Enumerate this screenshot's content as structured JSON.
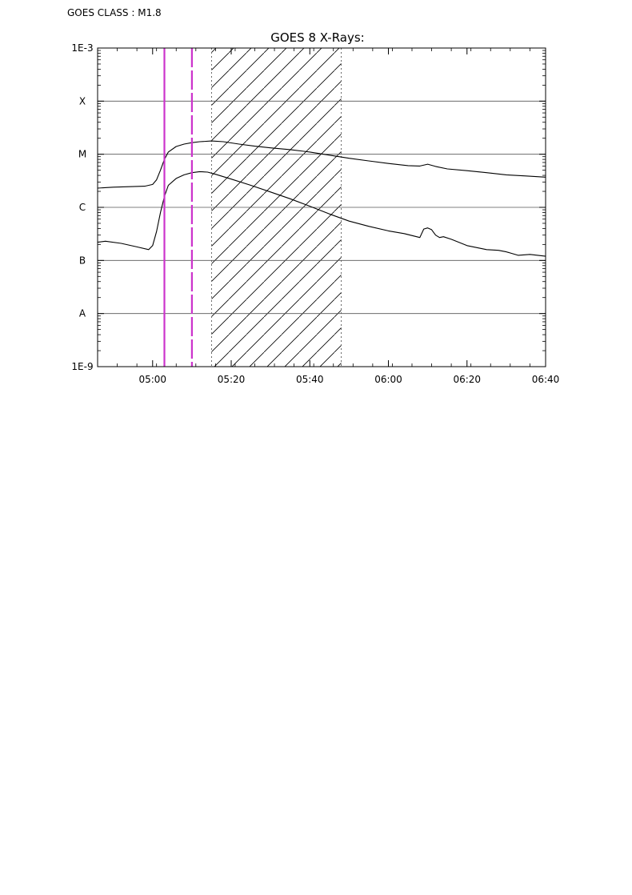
{
  "header": {
    "goes_class_label": "GOES CLASS : M1.8"
  },
  "chart_data": {
    "type": "line",
    "title": "GOES 8 X-Rays:",
    "xlabel": "",
    "ylabel": "",
    "y_scale": "log",
    "ylim": [
      1e-09,
      0.001
    ],
    "xlim": [
      "04:46",
      "06:40"
    ],
    "x_tick_labels": [
      "05:00",
      "05:20",
      "05:40",
      "06:00",
      "06:20",
      "06:40"
    ],
    "y_tick_labels": [
      "1E-9",
      "A",
      "B",
      "C",
      "M",
      "X",
      "1E-3"
    ],
    "grid": "horizontal",
    "hatched_interval": [
      "05:15",
      "05:48"
    ],
    "markers": [
      {
        "time": "05:03",
        "style": "solid",
        "color": "#cc33cc"
      },
      {
        "time": "05:10",
        "style": "dashed",
        "color": "#cc33cc"
      }
    ],
    "series": [
      {
        "x": [
          "04:46",
          "04:50",
          "04:54",
          "04:58",
          "05:00",
          "05:01",
          "05:02",
          "05:03",
          "05:04",
          "05:06",
          "05:08",
          "05:10",
          "05:12",
          "05:15",
          "05:18",
          "05:22",
          "05:26",
          "05:30",
          "05:35",
          "05:40",
          "05:45",
          "05:50",
          "05:55",
          "06:00",
          "06:05",
          "06:08",
          "06:10",
          "06:12",
          "06:15",
          "06:20",
          "06:25",
          "06:30",
          "06:35",
          "06:40"
        ],
        "values": [
          2.3e-06,
          2.4e-06,
          2.45e-06,
          2.5e-06,
          2.7e-06,
          3.3e-06,
          5e-06,
          8e-06,
          1.1e-05,
          1.4e-05,
          1.55e-05,
          1.65e-05,
          1.72e-05,
          1.78e-05,
          1.72e-05,
          1.55e-05,
          1.42e-05,
          1.32e-05,
          1.22e-05,
          1.1e-05,
          9.6e-06,
          8.4e-06,
          7.5e-06,
          6.7e-06,
          6.1e-06,
          6e-06,
          6.5e-06,
          5.9e-06,
          5.3e-06,
          4.9e-06,
          4.5e-06,
          4.1e-06,
          3.9e-06,
          3.7e-06
        ]
      },
      {
        "x": [
          "04:46",
          "04:48",
          "04:52",
          "04:56",
          "04:59",
          "05:00",
          "05:01",
          "05:02",
          "05:03",
          "05:04",
          "05:06",
          "05:08",
          "05:10",
          "05:12",
          "05:14",
          "05:16",
          "05:20",
          "05:25",
          "05:30",
          "05:35",
          "05:40",
          "05:45",
          "05:50",
          "05:55",
          "06:00",
          "06:04",
          "06:08",
          "06:09",
          "06:10",
          "06:11",
          "06:12",
          "06:13",
          "06:14",
          "06:16",
          "06:20",
          "06:25",
          "06:28",
          "06:30",
          "06:33",
          "06:36",
          "06:40"
        ],
        "values": [
          2.2e-07,
          2.3e-07,
          2.1e-07,
          1.8e-07,
          1.6e-07,
          1.9e-07,
          3.5e-07,
          8e-07,
          1.6e-06,
          2.6e-06,
          3.5e-06,
          4.1e-06,
          4.5e-06,
          4.7e-06,
          4.6e-06,
          4.2e-06,
          3.4e-06,
          2.6e-06,
          1.95e-06,
          1.45e-06,
          1.05e-06,
          7.5e-07,
          5.5e-07,
          4.4e-07,
          3.6e-07,
          3.2e-07,
          2.7e-07,
          3.9e-07,
          4.1e-07,
          3.8e-07,
          3e-07,
          2.7e-07,
          2.8e-07,
          2.5e-07,
          1.9e-07,
          1.6e-07,
          1.55e-07,
          1.45e-07,
          1.25e-07,
          1.3e-07,
          1.2e-07
        ]
      }
    ]
  }
}
